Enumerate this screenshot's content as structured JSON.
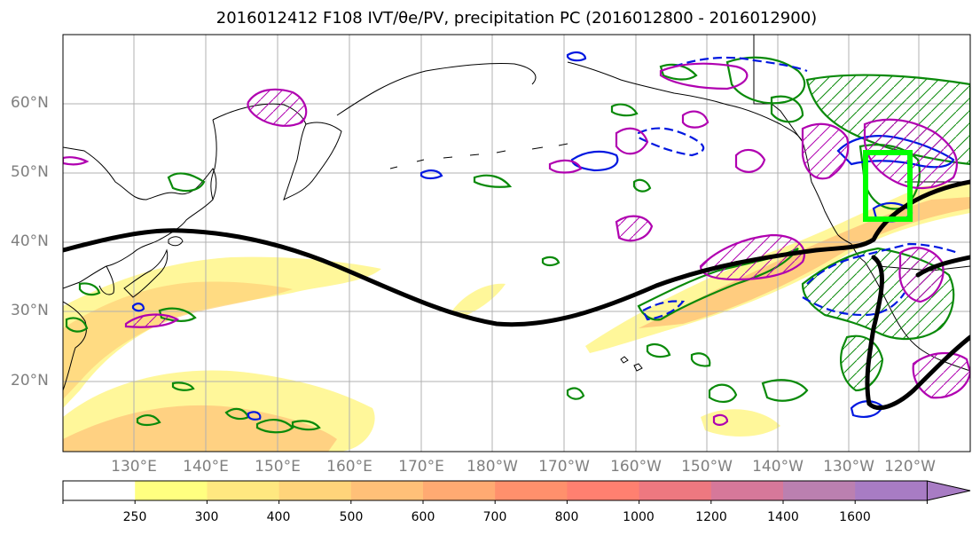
{
  "title": "2016012412 F108 IVT/θe/PV, precipitation PC (2016012800 - 2016012900)",
  "lat_labels": [
    "60°N",
    "50°N",
    "40°N",
    "30°N",
    "20°N"
  ],
  "lon_labels": [
    "130°E",
    "140°E",
    "150°E",
    "160°E",
    "170°E",
    "180°W",
    "170°W",
    "160°W",
    "150°W",
    "140°W",
    "130°W",
    "120°W"
  ],
  "colorbar": {
    "levels": [
      "250",
      "300",
      "400",
      "500",
      "600",
      "700",
      "800",
      "1000",
      "1200",
      "1400",
      "1600"
    ],
    "colors": [
      "#ffffff",
      "#ffff80",
      "#ffe880",
      "#ffd47a",
      "#ffc078",
      "#ffaa72",
      "#ff906c",
      "#ff8070",
      "#ee7880",
      "#d6789a",
      "#bb80b0",
      "#a87cc4"
    ]
  },
  "map_colors": {
    "ivt_fill_light": "#fff79a",
    "ivt_fill_mid": "#ffd27a",
    "ivt_fill_dark": "#ffac70",
    "theta_e_contour": "#000000",
    "pv_contour_green": "#0a8a0a",
    "pv_contour_blue": "#0018e0",
    "precip_contour_magenta": "#b000b0",
    "target_box": "#00ff00",
    "coastline": "#000000",
    "gridline": "#b0b0b0"
  }
}
